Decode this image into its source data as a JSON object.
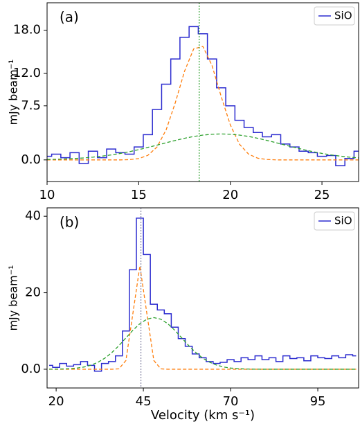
{
  "chart_data": [
    {
      "type": "line",
      "annotation": "(a)",
      "ylabel": "mJy beam⁻¹",
      "legend": "upper right",
      "x": [
        10,
        10.5,
        11,
        11.5,
        12,
        12.5,
        13,
        13.5,
        14,
        14.5,
        15,
        15.5,
        16,
        16.5,
        17,
        17.5,
        18,
        18.5,
        19,
        19.5,
        20,
        20.5,
        21,
        21.5,
        22,
        22.5,
        23,
        23.5,
        24,
        24.5,
        25,
        25.5,
        26,
        26.5,
        27
      ],
      "series": [
        {
          "name": "SiO",
          "color": "#2b2bcf",
          "drawstyle": "steps-mid",
          "linestyle": "solid",
          "values": [
            0.5,
            0.8,
            0.3,
            1.0,
            -0.5,
            1.2,
            0.3,
            1.5,
            1.0,
            0.8,
            1.8,
            3.5,
            7,
            10.5,
            14,
            17,
            18.5,
            17.5,
            14,
            10,
            7.5,
            5.5,
            4.5,
            3.8,
            3.2,
            3.5,
            2.2,
            1.8,
            1.2,
            1.0,
            0.5,
            0.6,
            -0.8,
            0.2,
            1.2
          ]
        },
        {
          "color": "#ff7f0e",
          "drawstyle": "default",
          "linestyle": "dashed",
          "values": [
            0,
            0,
            0,
            0,
            0,
            0,
            0,
            0,
            0,
            0.04,
            0.18,
            0.63,
            1.79,
            4.19,
            7.96,
            12.3,
            15.4,
            15.74,
            13.1,
            8.8,
            4.85,
            2.17,
            0.79,
            0.23,
            0.06,
            0,
            0,
            0,
            0,
            0,
            0,
            0,
            0,
            0,
            0
          ]
        },
        {
          "color": "#2ca02c",
          "drawstyle": "default",
          "linestyle": "dashed",
          "values": [
            0.06,
            0.09,
            0.13,
            0.19,
            0.27,
            0.38,
            0.52,
            0.69,
            0.9,
            1.14,
            1.42,
            1.73,
            2.05,
            2.38,
            2.7,
            3.0,
            3.25,
            3.44,
            3.56,
            3.6,
            3.56,
            3.44,
            3.25,
            3.0,
            2.7,
            2.38,
            2.05,
            1.73,
            1.42,
            1.14,
            0.9,
            0.69,
            0.52,
            0.38,
            0.27
          ]
        }
      ],
      "vlines": [
        {
          "value": 18.3,
          "color": "#2ca02c"
        }
      ],
      "xlim": [
        10,
        27
      ],
      "ylim": [
        -3,
        21.8
      ],
      "xticks": [
        10,
        15,
        20,
        25
      ],
      "yticks": [
        {
          "value": 0,
          "label": "0.0"
        },
        7.5,
        {
          "value": 12,
          "label": "12.0"
        },
        {
          "value": 18,
          "label": "18.0"
        }
      ]
    },
    {
      "type": "line",
      "annotation": "(b)",
      "ylabel": "mJy beam⁻¹",
      "xlabel": "Velocity (km s⁻¹)",
      "legend": "upper right",
      "x": [
        18,
        20,
        22,
        24,
        26,
        28,
        30,
        32,
        34,
        36,
        38,
        40,
        42,
        44,
        46,
        48,
        50,
        52,
        54,
        56,
        58,
        60,
        62,
        64,
        66,
        68,
        70,
        72,
        74,
        76,
        78,
        80,
        82,
        84,
        86,
        88,
        90,
        92,
        94,
        96,
        98,
        100,
        102,
        104,
        106
      ],
      "series": [
        {
          "name": "SiO",
          "color": "#2b2bcf",
          "drawstyle": "steps-mid",
          "linestyle": "solid",
          "values": [
            1.0,
            0.5,
            1.5,
            0.8,
            1.2,
            2.0,
            1.0,
            -0.5,
            1.5,
            2.0,
            3.5,
            10,
            26,
            39.5,
            30,
            17,
            15.5,
            14.5,
            11,
            8,
            6,
            4,
            3,
            2,
            1.5,
            1.8,
            2.5,
            2.0,
            3.0,
            2.5,
            3.5,
            2.5,
            3.0,
            2.0,
            3.5,
            2.8,
            3.0,
            2.2,
            3.5,
            3.0,
            2.8,
            3.5,
            3.0,
            3.8,
            3.5
          ]
        },
        {
          "color": "#ff7f0e",
          "drawstyle": "default",
          "linestyle": "dashed",
          "values": [
            0,
            0,
            0,
            0,
            0,
            0,
            0,
            0,
            0,
            0,
            0.1,
            2.29,
            14.6,
            27,
            14.6,
            2.29,
            0.1,
            0,
            0,
            0,
            0,
            0,
            0,
            0,
            0,
            0,
            0,
            0,
            0,
            0,
            0,
            0,
            0,
            0,
            0,
            0,
            0,
            0,
            0,
            0,
            0,
            0,
            0,
            0,
            0
          ]
        },
        {
          "color": "#2ca02c",
          "drawstyle": "default",
          "linestyle": "dashed",
          "values": [
            0.01,
            0.03,
            0.07,
            0.15,
            0.31,
            0.59,
            1.07,
            1.83,
            2.92,
            4.38,
            6.18,
            8.19,
            10.19,
            11.91,
            13.08,
            13.5,
            13.08,
            11.91,
            10.19,
            8.19,
            6.18,
            4.38,
            2.92,
            1.83,
            1.07,
            0.59,
            0.31,
            0.15,
            0.07,
            0.03,
            0.01,
            0,
            0,
            0,
            0,
            0,
            0,
            0,
            0,
            0,
            0,
            0,
            0,
            0,
            0
          ]
        }
      ],
      "vlines": [
        {
          "value": 44.3,
          "color": "#7f7fa0"
        }
      ],
      "xlim": [
        17.4,
        106.7
      ],
      "ylim": [
        -4.9,
        42.2
      ],
      "xticks": [
        20,
        45,
        70,
        95
      ],
      "yticks": [
        {
          "value": 0,
          "label": "0.0"
        },
        20,
        40
      ]
    }
  ]
}
